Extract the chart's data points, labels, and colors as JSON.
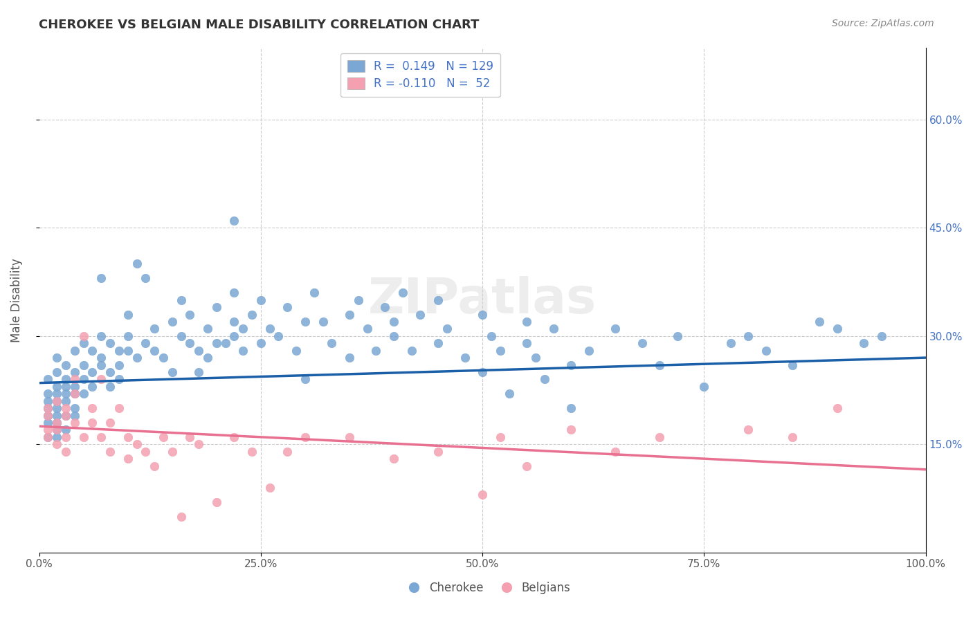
{
  "title": "CHEROKEE VS BELGIAN MALE DISABILITY CORRELATION CHART",
  "source": "Source: ZipAtlas.com",
  "xlabel": "",
  "ylabel": "Male Disability",
  "watermark": "ZIPatlas",
  "legend_r1": "R =  0.149   N = 129",
  "legend_r2": "R = -0.110   N =  52",
  "cherokee_color": "#7ba7d4",
  "belgian_color": "#f4a0b0",
  "trend_cherokee_color": "#1a5fa8",
  "trend_belgian_color": "#e87090",
  "background_color": "#ffffff",
  "xlim": [
    0.0,
    1.0
  ],
  "ylim": [
    0.0,
    0.7
  ],
  "xticks": [
    0.0,
    0.25,
    0.5,
    0.75,
    1.0
  ],
  "xtick_labels": [
    "0.0%",
    "25.0%",
    "50.0%",
    "75.0%",
    "100.0%"
  ],
  "ytick_positions": [
    0.15,
    0.3,
    0.45,
    0.6
  ],
  "ytick_labels": [
    "15.0%",
    "30.0%",
    "45.0%",
    "60.0%"
  ],
  "cherokee_R": 0.149,
  "cherokee_N": 129,
  "belgian_R": -0.11,
  "belgian_N": 52,
  "cherokee_x": [
    0.01,
    0.01,
    0.01,
    0.01,
    0.01,
    0.01,
    0.01,
    0.02,
    0.02,
    0.02,
    0.02,
    0.02,
    0.02,
    0.02,
    0.02,
    0.02,
    0.02,
    0.03,
    0.03,
    0.03,
    0.03,
    0.03,
    0.03,
    0.03,
    0.04,
    0.04,
    0.04,
    0.04,
    0.04,
    0.04,
    0.05,
    0.05,
    0.05,
    0.05,
    0.06,
    0.06,
    0.06,
    0.07,
    0.07,
    0.07,
    0.07,
    0.08,
    0.08,
    0.08,
    0.09,
    0.09,
    0.09,
    0.1,
    0.1,
    0.1,
    0.11,
    0.11,
    0.12,
    0.12,
    0.13,
    0.13,
    0.14,
    0.15,
    0.15,
    0.16,
    0.16,
    0.17,
    0.17,
    0.18,
    0.18,
    0.19,
    0.19,
    0.2,
    0.2,
    0.21,
    0.22,
    0.22,
    0.22,
    0.22,
    0.23,
    0.23,
    0.24,
    0.25,
    0.25,
    0.26,
    0.27,
    0.28,
    0.29,
    0.3,
    0.3,
    0.31,
    0.32,
    0.33,
    0.35,
    0.35,
    0.36,
    0.37,
    0.38,
    0.39,
    0.4,
    0.4,
    0.41,
    0.42,
    0.43,
    0.45,
    0.45,
    0.46,
    0.48,
    0.5,
    0.5,
    0.51,
    0.52,
    0.53,
    0.55,
    0.55,
    0.56,
    0.57,
    0.58,
    0.6,
    0.6,
    0.62,
    0.65,
    0.68,
    0.7,
    0.72,
    0.75,
    0.78,
    0.8,
    0.82,
    0.85,
    0.88,
    0.9,
    0.93,
    0.95
  ],
  "cherokee_y": [
    0.2,
    0.22,
    0.18,
    0.19,
    0.21,
    0.24,
    0.16,
    0.21,
    0.23,
    0.17,
    0.2,
    0.19,
    0.22,
    0.25,
    0.18,
    0.16,
    0.27,
    0.21,
    0.23,
    0.19,
    0.17,
    0.26,
    0.24,
    0.22,
    0.25,
    0.23,
    0.2,
    0.28,
    0.22,
    0.19,
    0.26,
    0.24,
    0.22,
    0.29,
    0.28,
    0.25,
    0.23,
    0.3,
    0.27,
    0.26,
    0.38,
    0.25,
    0.23,
    0.29,
    0.28,
    0.26,
    0.24,
    0.3,
    0.28,
    0.33,
    0.4,
    0.27,
    0.29,
    0.38,
    0.28,
    0.31,
    0.27,
    0.32,
    0.25,
    0.3,
    0.35,
    0.29,
    0.33,
    0.25,
    0.28,
    0.27,
    0.31,
    0.29,
    0.34,
    0.29,
    0.32,
    0.3,
    0.36,
    0.46,
    0.28,
    0.31,
    0.33,
    0.29,
    0.35,
    0.31,
    0.3,
    0.34,
    0.28,
    0.32,
    0.24,
    0.36,
    0.32,
    0.29,
    0.33,
    0.27,
    0.35,
    0.31,
    0.28,
    0.34,
    0.32,
    0.3,
    0.36,
    0.28,
    0.33,
    0.29,
    0.35,
    0.31,
    0.27,
    0.33,
    0.25,
    0.3,
    0.28,
    0.22,
    0.29,
    0.32,
    0.27,
    0.24,
    0.31,
    0.26,
    0.2,
    0.28,
    0.31,
    0.29,
    0.26,
    0.3,
    0.23,
    0.29,
    0.3,
    0.28,
    0.26,
    0.32,
    0.31,
    0.29,
    0.3
  ],
  "belgian_x": [
    0.01,
    0.01,
    0.01,
    0.01,
    0.02,
    0.02,
    0.02,
    0.02,
    0.03,
    0.03,
    0.03,
    0.03,
    0.04,
    0.04,
    0.04,
    0.05,
    0.05,
    0.06,
    0.06,
    0.07,
    0.07,
    0.08,
    0.08,
    0.09,
    0.1,
    0.1,
    0.11,
    0.12,
    0.13,
    0.14,
    0.15,
    0.16,
    0.17,
    0.18,
    0.2,
    0.22,
    0.24,
    0.26,
    0.28,
    0.3,
    0.35,
    0.4,
    0.45,
    0.5,
    0.52,
    0.55,
    0.6,
    0.65,
    0.7,
    0.8,
    0.85,
    0.9
  ],
  "belgian_y": [
    0.17,
    0.19,
    0.16,
    0.2,
    0.18,
    0.21,
    0.15,
    0.17,
    0.19,
    0.16,
    0.2,
    0.14,
    0.22,
    0.18,
    0.24,
    0.16,
    0.3,
    0.2,
    0.18,
    0.16,
    0.24,
    0.14,
    0.18,
    0.2,
    0.16,
    0.13,
    0.15,
    0.14,
    0.12,
    0.16,
    0.14,
    0.05,
    0.16,
    0.15,
    0.07,
    0.16,
    0.14,
    0.09,
    0.14,
    0.16,
    0.16,
    0.13,
    0.14,
    0.08,
    0.16,
    0.12,
    0.17,
    0.14,
    0.16,
    0.17,
    0.16,
    0.2
  ],
  "cherokee_trend_x": [
    0.0,
    1.0
  ],
  "cherokee_trend_y_start": 0.235,
  "cherokee_trend_y_end": 0.27,
  "belgian_trend_x": [
    0.0,
    1.0
  ],
  "belgian_trend_y_start": 0.175,
  "belgian_trend_y_end": 0.115
}
